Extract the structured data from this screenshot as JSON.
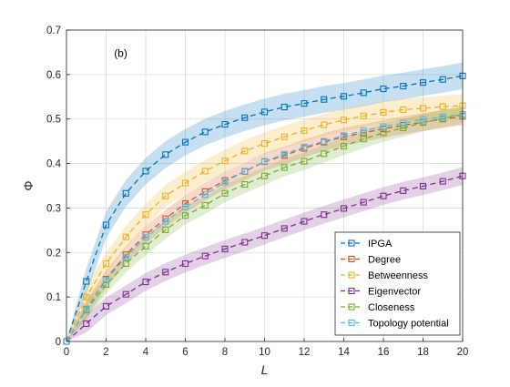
{
  "chart_data": {
    "type": "line",
    "panel_label": "(b)",
    "xlabel": "L",
    "ylabel": "Φ",
    "xlim": [
      0,
      20
    ],
    "ylim": [
      0,
      0.7
    ],
    "xticks": [
      0,
      2,
      4,
      6,
      8,
      10,
      12,
      14,
      16,
      18,
      20
    ],
    "yticks": [
      0,
      0.1,
      0.2,
      0.3,
      0.4,
      0.5,
      0.6,
      0.7
    ],
    "grid": true,
    "legend_position": "bottom-right",
    "x": [
      0,
      1,
      2,
      3,
      4,
      5,
      6,
      7,
      8,
      9,
      10,
      11,
      12,
      13,
      14,
      15,
      16,
      17,
      18,
      19,
      20
    ],
    "series": [
      {
        "name": "IPGA",
        "color": "#0072bd",
        "band_halfwidth": 0.03,
        "values": [
          0,
          0.135,
          0.262,
          0.333,
          0.383,
          0.42,
          0.448,
          0.471,
          0.488,
          0.503,
          0.516,
          0.527,
          0.535,
          0.544,
          0.551,
          0.559,
          0.568,
          0.574,
          0.582,
          0.589,
          0.597
        ]
      },
      {
        "name": "Degree",
        "color": "#d95319",
        "band_halfwidth": 0.02,
        "values": [
          0,
          0.073,
          0.14,
          0.195,
          0.24,
          0.276,
          0.31,
          0.337,
          0.362,
          0.382,
          0.404,
          0.418,
          0.434,
          0.448,
          0.46,
          0.469,
          0.478,
          0.486,
          0.493,
          0.5,
          0.506
        ]
      },
      {
        "name": "Betweenness",
        "color": "#edb120",
        "band_halfwidth": 0.025,
        "values": [
          0,
          0.1,
          0.175,
          0.235,
          0.285,
          0.327,
          0.356,
          0.383,
          0.406,
          0.428,
          0.445,
          0.46,
          0.474,
          0.487,
          0.498,
          0.507,
          0.515,
          0.521,
          0.524,
          0.528,
          0.53
        ]
      },
      {
        "name": "Eigenvector",
        "color": "#7e2f8e",
        "band_halfwidth": 0.02,
        "values": [
          0,
          0.04,
          0.079,
          0.106,
          0.134,
          0.156,
          0.175,
          0.192,
          0.208,
          0.223,
          0.238,
          0.254,
          0.27,
          0.285,
          0.299,
          0.313,
          0.327,
          0.339,
          0.349,
          0.36,
          0.372
        ]
      },
      {
        "name": "Closeness",
        "color": "#77ac30",
        "band_halfwidth": 0.02,
        "values": [
          0,
          0.07,
          0.128,
          0.175,
          0.214,
          0.251,
          0.283,
          0.306,
          0.333,
          0.353,
          0.372,
          0.391,
          0.405,
          0.422,
          0.439,
          0.455,
          0.469,
          0.48,
          0.492,
          0.501,
          0.51
        ]
      },
      {
        "name": "Topology potential",
        "color": "#4dbeee",
        "band_halfwidth": 0.0,
        "values": [
          0,
          0.072,
          0.138,
          0.19,
          0.234,
          0.27,
          0.302,
          0.33,
          0.358,
          0.383,
          0.405,
          0.421,
          0.437,
          0.45,
          0.463,
          0.474,
          0.483,
          0.491,
          0.499,
          0.505,
          0.511
        ]
      }
    ]
  }
}
